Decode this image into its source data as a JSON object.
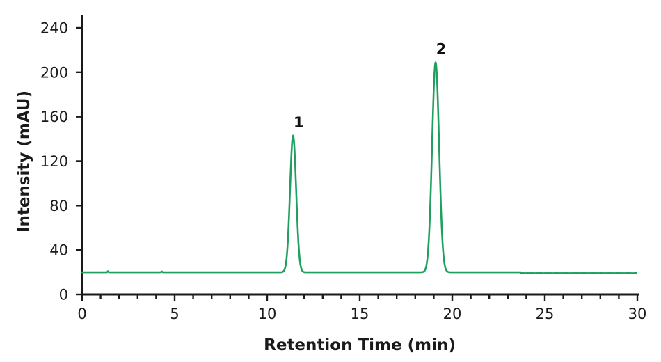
{
  "chart_data": {
    "type": "line",
    "title": "",
    "xlabel": "Retention Time (min)",
    "ylabel": "Intensity (mAU)",
    "x_range": [
      0,
      30
    ],
    "y_range": [
      0,
      240
    ],
    "x_major_ticks": [
      0,
      5,
      10,
      15,
      20,
      25,
      30
    ],
    "x_minor_tick_step": 1,
    "y_major_ticks": [
      0,
      40,
      80,
      120,
      160,
      200,
      240
    ],
    "grid": false,
    "legend": "none",
    "line_color": "#1fa05e",
    "axis_color": "#1a1a1a",
    "baseline_mAU": 20,
    "baseline_step": {
      "time_min": 23.7,
      "level_mAU": 19.2,
      "noise_amplitude_mAU": 0.4
    },
    "peaks": [
      {
        "label": "1",
        "retention_time_min": 11.4,
        "apex_mAU": 143,
        "height_above_baseline_mAU": 123,
        "sigma_min": 0.165
      },
      {
        "label": "2",
        "retention_time_min": 19.1,
        "apex_mAU": 209,
        "height_above_baseline_mAU": 189,
        "sigma_min": 0.19
      }
    ],
    "artifacts": [
      {
        "type": "spike",
        "time_min": 1.4,
        "amplitude_mAU": 1.0
      },
      {
        "type": "spike",
        "time_min": 4.3,
        "amplitude_mAU": 0.8
      }
    ]
  }
}
